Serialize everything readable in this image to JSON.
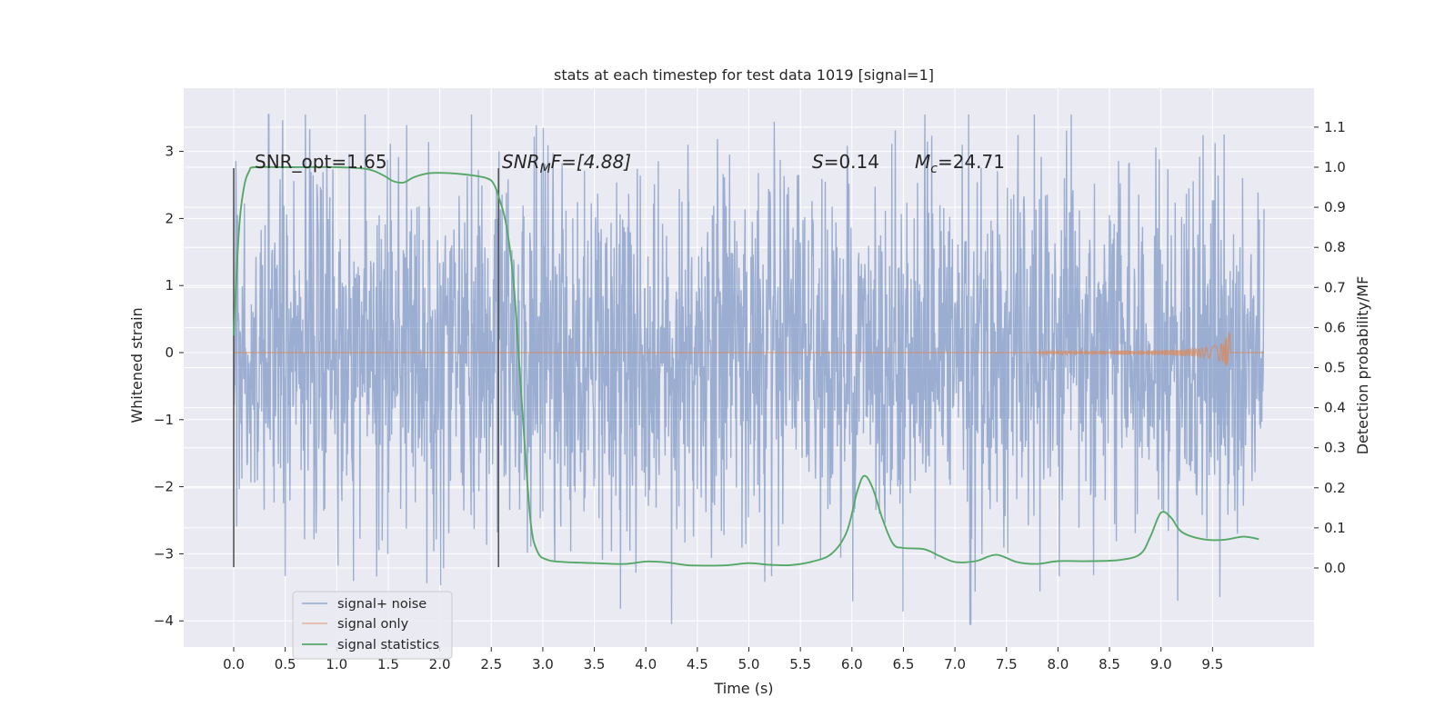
{
  "chart_data": {
    "type": "line",
    "title": "stats at each timestep for test data 1019 [signal=1]",
    "xlabel": "Time (s)",
    "ylabel": "Whitened strain",
    "y2label": "Detection probability/MF",
    "xlim": [
      -0.5,
      10.5
    ],
    "ylim": [
      -4.5,
      3.95
    ],
    "y2lim": [
      -0.19,
      1.21
    ],
    "x_ticks": [
      "0.0",
      "0.5",
      "1.0",
      "1.5",
      "2.0",
      "2.5",
      "3.0",
      "3.5",
      "4.0",
      "4.5",
      "5.0",
      "5.5",
      "6.0",
      "6.5",
      "7.0",
      "7.5",
      "8.0",
      "8.5",
      "9.0",
      "9.5"
    ],
    "y_ticks": [
      "3",
      "2",
      "1",
      "0",
      "−1",
      "−2",
      "−3",
      "−4"
    ],
    "y2_ticks": [
      "1.1",
      "1.0",
      "0.9",
      "0.8",
      "0.7",
      "0.6",
      "0.5",
      "0.4",
      "0.3",
      "0.2",
      "0.1",
      "0.0"
    ],
    "grid": true,
    "background": "#eaeaf2",
    "annotations": {
      "snr_opt": "SNR_opt=1.65",
      "snr_mf_base": "SNR",
      "snr_mf_sub": "M",
      "snr_mf_rest": "F=[4.88]",
      "s_var": "S",
      "s_val": "=0.14",
      "mc_base": "M",
      "mc_sub": "c",
      "mc_val": "=24.71"
    },
    "vertical_markers": [
      0.0,
      2.57
    ],
    "series": [
      {
        "name": "signal+ noise",
        "color": "#4c72b0",
        "axis": "left",
        "x_range": [
          0.0,
          10.0
        ],
        "typical_amplitude": 1.6,
        "max": 3.55,
        "min": -4.05
      },
      {
        "name": "signal only",
        "color": "#dd8452",
        "axis": "left",
        "chirp_start": 7.8,
        "chirp_peak_time": 9.67,
        "chirp_peak_amplitude": 0.35
      },
      {
        "name": "signal statistics",
        "color": "#55a868",
        "axis": "right",
        "points": [
          [
            0.0,
            0.58
          ],
          [
            0.05,
            0.84
          ],
          [
            0.1,
            0.95
          ],
          [
            0.15,
            0.99
          ],
          [
            0.2,
            1.0
          ],
          [
            0.5,
            1.0
          ],
          [
            1.0,
            1.0
          ],
          [
            1.3,
            0.995
          ],
          [
            1.45,
            0.98
          ],
          [
            1.55,
            0.965
          ],
          [
            1.65,
            0.962
          ],
          [
            1.75,
            0.975
          ],
          [
            1.9,
            0.985
          ],
          [
            2.1,
            0.985
          ],
          [
            2.3,
            0.98
          ],
          [
            2.45,
            0.973
          ],
          [
            2.52,
            0.96
          ],
          [
            2.58,
            0.92
          ],
          [
            2.65,
            0.85
          ],
          [
            2.72,
            0.7
          ],
          [
            2.8,
            0.4
          ],
          [
            2.88,
            0.12
          ],
          [
            2.95,
            0.04
          ],
          [
            3.05,
            0.02
          ],
          [
            3.2,
            0.015
          ],
          [
            3.5,
            0.012
          ],
          [
            3.8,
            0.01
          ],
          [
            4.0,
            0.016
          ],
          [
            4.2,
            0.014
          ],
          [
            4.4,
            0.007
          ],
          [
            4.6,
            0.006
          ],
          [
            4.8,
            0.007
          ],
          [
            5.0,
            0.012
          ],
          [
            5.2,
            0.008
          ],
          [
            5.4,
            0.007
          ],
          [
            5.6,
            0.015
          ],
          [
            5.8,
            0.035
          ],
          [
            5.95,
            0.09
          ],
          [
            6.05,
            0.19
          ],
          [
            6.12,
            0.23
          ],
          [
            6.2,
            0.2
          ],
          [
            6.3,
            0.12
          ],
          [
            6.4,
            0.06
          ],
          [
            6.5,
            0.05
          ],
          [
            6.7,
            0.047
          ],
          [
            6.85,
            0.03
          ],
          [
            7.0,
            0.015
          ],
          [
            7.2,
            0.017
          ],
          [
            7.4,
            0.033
          ],
          [
            7.6,
            0.015
          ],
          [
            7.8,
            0.01
          ],
          [
            8.0,
            0.017
          ],
          [
            8.3,
            0.017
          ],
          [
            8.6,
            0.02
          ],
          [
            8.8,
            0.035
          ],
          [
            8.9,
            0.08
          ],
          [
            9.0,
            0.138
          ],
          [
            9.1,
            0.125
          ],
          [
            9.2,
            0.09
          ],
          [
            9.4,
            0.072
          ],
          [
            9.6,
            0.07
          ],
          [
            9.8,
            0.078
          ],
          [
            9.95,
            0.072
          ]
        ]
      }
    ],
    "legend": {
      "position": "lower-left",
      "entries": [
        "signal+ noise",
        "signal only",
        "signal statistics"
      ]
    }
  }
}
